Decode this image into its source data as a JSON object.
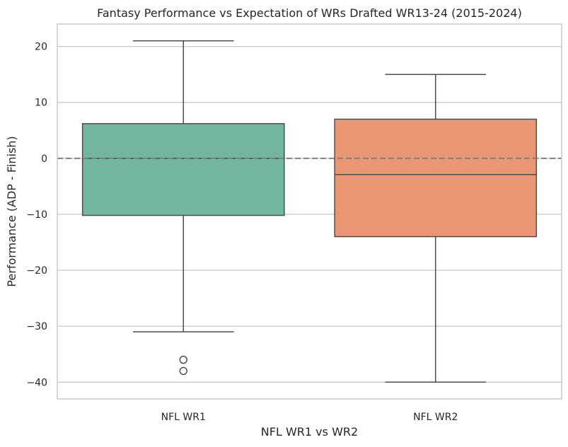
{
  "chart_data": {
    "type": "box",
    "title": "Fantasy Performance vs Expectation of WRs Drafted WR13-24 (2015-2024)",
    "xlabel": "NFL WR1 vs WR2",
    "ylabel": "Performance (ADP - Finish)",
    "ylim": [
      -43,
      24
    ],
    "yticks": [
      20,
      10,
      0,
      -10,
      -20,
      -30,
      -40
    ],
    "ytick_labels": [
      "20",
      "10",
      "0",
      "−10",
      "−20",
      "−30",
      "−40"
    ],
    "categories": [
      "NFL WR1",
      "NFL WR2"
    ],
    "grid": true,
    "reference_line": {
      "y": 0,
      "style": "dashed",
      "color": "#808080"
    },
    "boxes": [
      {
        "category": "NFL WR1",
        "whisker_low": -31,
        "q1": -10.2,
        "median": 0,
        "q3": 6.2,
        "whisker_high": 21,
        "outliers": [
          -36,
          -38
        ],
        "color": "#72b6a1"
      },
      {
        "category": "NFL WR2",
        "whisker_low": -40,
        "q1": -14,
        "median": -2.9,
        "q3": 7,
        "whisker_high": 15,
        "outliers": [],
        "color": "#e99675"
      }
    ]
  }
}
